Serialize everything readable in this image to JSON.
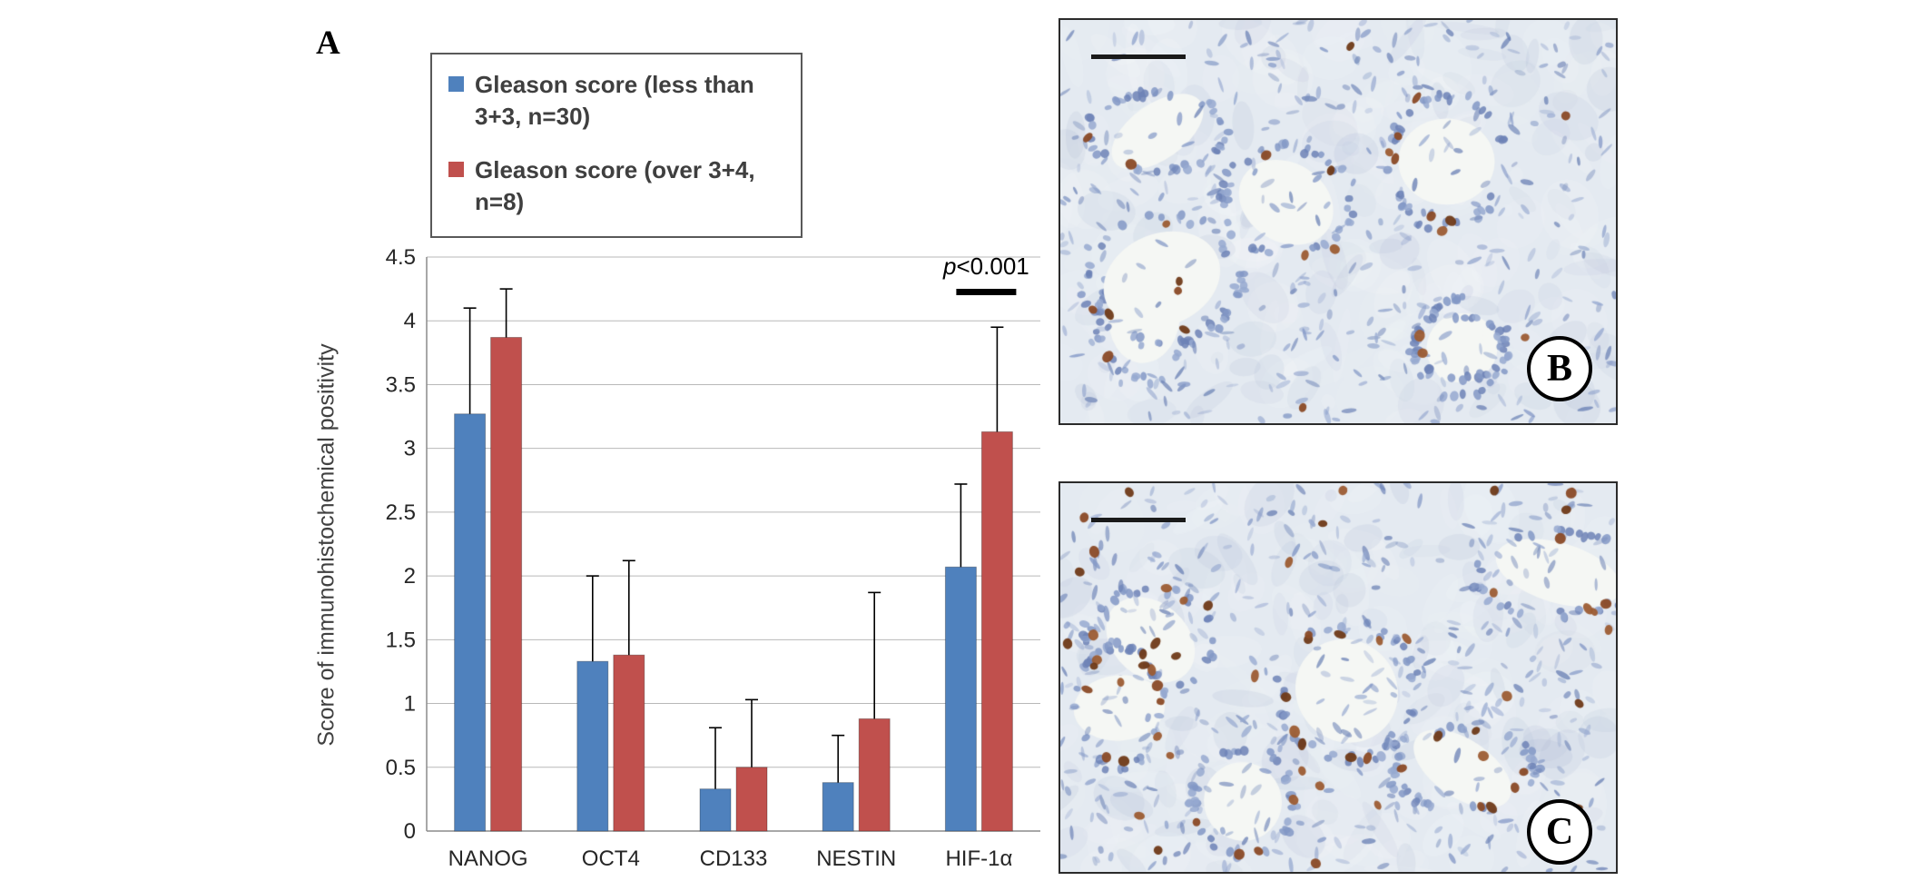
{
  "figure": {
    "background": "#ffffff",
    "panel_a_label": "A"
  },
  "chart_data": {
    "type": "bar",
    "title": "",
    "xlabel": "",
    "ylabel": "Score of immunohistochemical positivity",
    "categories": [
      "NANOG",
      "OCT4",
      "CD133",
      "NESTIN",
      "HIF-1α"
    ],
    "series": [
      {
        "name": "Gleason score (less than 3+3, n=30)",
        "color": "#4f81bd",
        "values": [
          3.27,
          1.33,
          0.33,
          0.38,
          2.07
        ],
        "errors_up": [
          0.83,
          0.67,
          0.48,
          0.37,
          0.65
        ]
      },
      {
        "name": "Gleason score (over 3+4, n=8)",
        "color": "#c0504d",
        "values": [
          3.87,
          1.38,
          0.5,
          0.88,
          3.13
        ],
        "errors_up": [
          0.38,
          0.74,
          0.53,
          0.99,
          0.82
        ]
      }
    ],
    "ylim": [
      0,
      4.5
    ],
    "ytick_step": 0.5,
    "grid": true,
    "legend_position": "top-left",
    "annotation": {
      "text": "p<0.001",
      "category": "HIF-1α"
    }
  },
  "histology": {
    "panels": [
      {
        "id": "B",
        "label": "B",
        "glands": 7,
        "stroma": 380,
        "brown": 26,
        "seed": 11
      },
      {
        "id": "C",
        "label": "C",
        "glands": 6,
        "stroma": 440,
        "brown": 68,
        "seed": 29
      }
    ],
    "colors": {
      "background": "#e4eaf1",
      "nuclei_blue": "#7b8fc0",
      "stain_brown": "#8a4a26",
      "lumen": "#f5f7f4",
      "scale_bar": "#1a1a1a"
    }
  }
}
